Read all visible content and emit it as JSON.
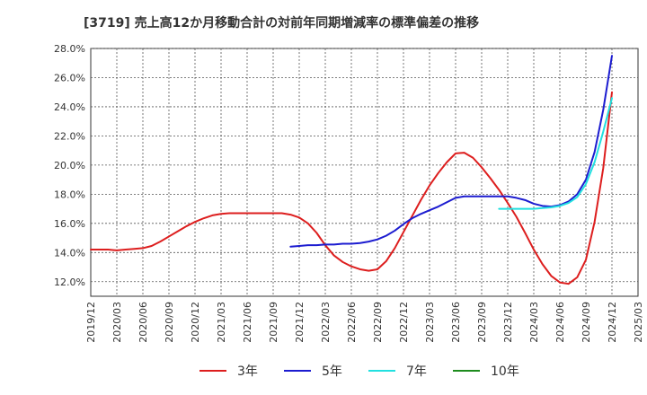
{
  "chart_data": {
    "type": "line",
    "title": "[3719]  売上高12か月移動合計の対前年同期増減率の標準偏差の推移",
    "xlabel": "",
    "ylabel": "",
    "ylim": [
      11.0,
      28.0
    ],
    "y_ticks": [
      "28.0%",
      "26.0%",
      "24.0%",
      "22.0%",
      "20.0%",
      "18.0%",
      "16.0%",
      "14.0%",
      "12.0%"
    ],
    "y_tick_values": [
      28,
      26,
      24,
      22,
      20,
      18,
      16,
      14,
      12
    ],
    "x_ticks": [
      "2019/12",
      "2020/03",
      "2020/06",
      "2020/09",
      "2020/12",
      "2021/03",
      "2021/06",
      "2021/09",
      "2021/12",
      "2022/03",
      "2022/06",
      "2022/09",
      "2022/12",
      "2023/03",
      "2023/06",
      "2023/09",
      "2023/12",
      "2024/03",
      "2024/06",
      "2024/09",
      "2024/12",
      "2025/03"
    ],
    "grid": true,
    "legend_position": "bottom",
    "series": [
      {
        "name": "3年",
        "color": "#dd1e1e",
        "points": [
          [
            "2019/12",
            14.2
          ],
          [
            "2020/01",
            14.2
          ],
          [
            "2020/02",
            14.2
          ],
          [
            "2020/03",
            14.15
          ],
          [
            "2020/04",
            14.2
          ],
          [
            "2020/05",
            14.25
          ],
          [
            "2020/06",
            14.3
          ],
          [
            "2020/07",
            14.45
          ],
          [
            "2020/08",
            14.75
          ],
          [
            "2020/09",
            15.1
          ],
          [
            "2020/10",
            15.45
          ],
          [
            "2020/11",
            15.8
          ],
          [
            "2020/12",
            16.1
          ],
          [
            "2021/01",
            16.35
          ],
          [
            "2021/02",
            16.55
          ],
          [
            "2021/03",
            16.65
          ],
          [
            "2021/04",
            16.7
          ],
          [
            "2021/05",
            16.7
          ],
          [
            "2021/06",
            16.7
          ],
          [
            "2021/07",
            16.7
          ],
          [
            "2021/08",
            16.7
          ],
          [
            "2021/09",
            16.7
          ],
          [
            "2021/10",
            16.7
          ],
          [
            "2021/11",
            16.6
          ],
          [
            "2021/12",
            16.4
          ],
          [
            "2022/01",
            16.0
          ],
          [
            "2022/02",
            15.35
          ],
          [
            "2022/03",
            14.5
          ],
          [
            "2022/04",
            13.8
          ],
          [
            "2022/05",
            13.35
          ],
          [
            "2022/06",
            13.05
          ],
          [
            "2022/07",
            12.85
          ],
          [
            "2022/08",
            12.75
          ],
          [
            "2022/09",
            12.85
          ],
          [
            "2022/10",
            13.4
          ],
          [
            "2022/11",
            14.3
          ],
          [
            "2022/12",
            15.4
          ],
          [
            "2023/01",
            16.5
          ],
          [
            "2023/02",
            17.6
          ],
          [
            "2023/03",
            18.6
          ],
          [
            "2023/04",
            19.45
          ],
          [
            "2023/05",
            20.2
          ],
          [
            "2023/06",
            20.8
          ],
          [
            "2023/07",
            20.85
          ],
          [
            "2023/08",
            20.5
          ],
          [
            "2023/09",
            19.85
          ],
          [
            "2023/10",
            19.1
          ],
          [
            "2023/11",
            18.3
          ],
          [
            "2023/12",
            17.4
          ],
          [
            "2024/01",
            16.45
          ],
          [
            "2024/02",
            15.35
          ],
          [
            "2024/03",
            14.2
          ],
          [
            "2024/04",
            13.2
          ],
          [
            "2024/05",
            12.4
          ],
          [
            "2024/06",
            11.95
          ],
          [
            "2024/07",
            11.85
          ],
          [
            "2024/08",
            12.3
          ],
          [
            "2024/09",
            13.5
          ],
          [
            "2024/10",
            16.1
          ],
          [
            "2024/11",
            19.8
          ],
          [
            "2024/12",
            25.0
          ]
        ]
      },
      {
        "name": "5年",
        "color": "#1c1cd0",
        "points": [
          [
            "2021/11",
            14.4
          ],
          [
            "2021/12",
            14.45
          ],
          [
            "2022/01",
            14.5
          ],
          [
            "2022/02",
            14.5
          ],
          [
            "2022/03",
            14.55
          ],
          [
            "2022/04",
            14.55
          ],
          [
            "2022/05",
            14.6
          ],
          [
            "2022/06",
            14.6
          ],
          [
            "2022/07",
            14.65
          ],
          [
            "2022/08",
            14.75
          ],
          [
            "2022/09",
            14.9
          ],
          [
            "2022/10",
            15.15
          ],
          [
            "2022/11",
            15.5
          ],
          [
            "2022/12",
            15.95
          ],
          [
            "2023/01",
            16.35
          ],
          [
            "2023/02",
            16.65
          ],
          [
            "2023/03",
            16.9
          ],
          [
            "2023/04",
            17.15
          ],
          [
            "2023/05",
            17.45
          ],
          [
            "2023/06",
            17.75
          ],
          [
            "2023/07",
            17.85
          ],
          [
            "2023/08",
            17.85
          ],
          [
            "2023/09",
            17.85
          ],
          [
            "2023/10",
            17.85
          ],
          [
            "2023/11",
            17.85
          ],
          [
            "2023/12",
            17.85
          ],
          [
            "2024/01",
            17.75
          ],
          [
            "2024/02",
            17.6
          ],
          [
            "2024/03",
            17.35
          ],
          [
            "2024/04",
            17.2
          ],
          [
            "2024/05",
            17.15
          ],
          [
            "2024/06",
            17.25
          ],
          [
            "2024/07",
            17.5
          ],
          [
            "2024/08",
            18.0
          ],
          [
            "2024/09",
            19.0
          ],
          [
            "2024/10",
            20.9
          ],
          [
            "2024/11",
            23.8
          ],
          [
            "2024/12",
            27.5
          ]
        ]
      },
      {
        "name": "7年",
        "color": "#22e0e0",
        "points": [
          [
            "2023/11",
            17.0
          ],
          [
            "2023/12",
            17.0
          ],
          [
            "2024/01",
            17.0
          ],
          [
            "2024/02",
            17.0
          ],
          [
            "2024/03",
            17.0
          ],
          [
            "2024/04",
            17.05
          ],
          [
            "2024/05",
            17.1
          ],
          [
            "2024/06",
            17.2
          ],
          [
            "2024/07",
            17.4
          ],
          [
            "2024/08",
            17.8
          ],
          [
            "2024/09",
            18.7
          ],
          [
            "2024/10",
            20.2
          ],
          [
            "2024/11",
            22.3
          ],
          [
            "2024/12",
            24.6
          ]
        ]
      },
      {
        "name": "10年",
        "color": "#1e8c1e",
        "points": []
      }
    ]
  }
}
